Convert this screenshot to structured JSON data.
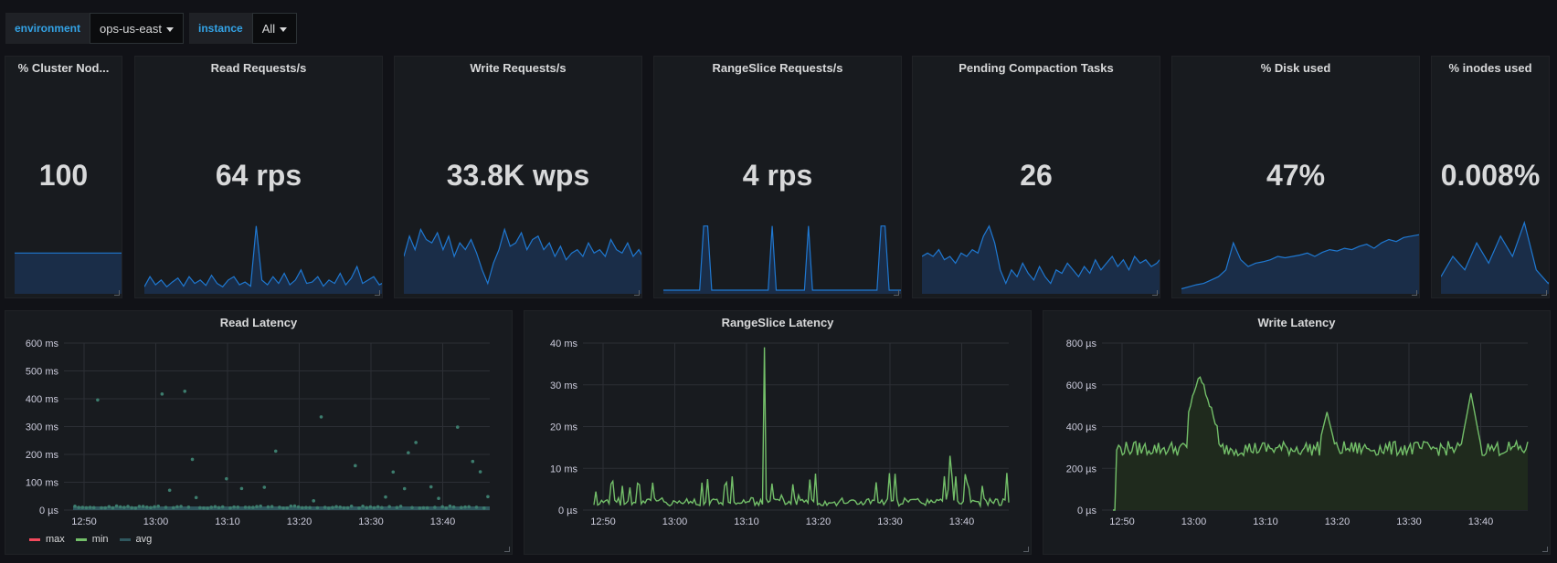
{
  "variables": [
    {
      "label": "environment",
      "value": "ops-us-east"
    },
    {
      "label": "instance",
      "value": "All"
    }
  ],
  "colors": {
    "accent": "#33a2e5",
    "spark_line": "#1f78d1",
    "spark_fill": "#1a2d48",
    "green": "#73bf69",
    "red": "#f2495c",
    "avg": "#2f575e"
  },
  "stats": [
    {
      "title": "% Cluster Nod...",
      "value": "100",
      "spark": [
        0.55,
        0.55,
        0.55,
        0.55,
        0.55,
        0.55,
        0.55,
        0.55,
        0.55,
        0.55,
        0.55
      ]
    },
    {
      "title": "Read Requests/s",
      "value": "64 rps",
      "spark": [
        0.05,
        0.2,
        0.08,
        0.15,
        0.05,
        0.12,
        0.18,
        0.06,
        0.2,
        0.1,
        0.15,
        0.07,
        0.22,
        0.1,
        0.05,
        0.15,
        0.2,
        0.08,
        0.12,
        0.06,
        0.95,
        0.15,
        0.08,
        0.2,
        0.1,
        0.25,
        0.08,
        0.15,
        0.3,
        0.1,
        0.12,
        0.2,
        0.06,
        0.15,
        0.1,
        0.25,
        0.08,
        0.18,
        0.35,
        0.1,
        0.15,
        0.2,
        0.08,
        0.12,
        0.3,
        0.1,
        0.2,
        0.15,
        0.4,
        0.1
      ]
    },
    {
      "title": "Write Requests/s",
      "value": "33.8K wps",
      "spark": [
        0.5,
        0.8,
        0.6,
        0.9,
        0.75,
        0.7,
        0.85,
        0.6,
        0.8,
        0.5,
        0.7,
        0.6,
        0.75,
        0.55,
        0.3,
        0.1,
        0.4,
        0.6,
        0.9,
        0.65,
        0.7,
        0.85,
        0.6,
        0.75,
        0.8,
        0.6,
        0.7,
        0.5,
        0.65,
        0.45,
        0.55,
        0.6,
        0.5,
        0.7,
        0.55,
        0.6,
        0.5,
        0.75,
        0.6,
        0.55,
        0.7,
        0.5,
        0.6,
        0.45,
        0.7,
        0.55,
        0.8,
        0.6,
        0.75,
        0.7
      ]
    },
    {
      "title": "RangeSlice Requests/s",
      "value": "4 rps",
      "spark": [
        0,
        0,
        0,
        0,
        0,
        0,
        0,
        0,
        0,
        0,
        0.95,
        0.95,
        0,
        0,
        0,
        0,
        0,
        0,
        0,
        0,
        0,
        0,
        0,
        0,
        0,
        0,
        0,
        0.95,
        0,
        0,
        0,
        0,
        0,
        0,
        0,
        0,
        0.95,
        0,
        0,
        0,
        0,
        0,
        0,
        0,
        0,
        0,
        0,
        0,
        0,
        0,
        0,
        0,
        0,
        0,
        0.95,
        0.95,
        0,
        0,
        0,
        0,
        0,
        0,
        0,
        0,
        0,
        0,
        0,
        0,
        0
      ]
    },
    {
      "title": "Pending Compaction Tasks",
      "value": "26",
      "spark": [
        0.5,
        0.55,
        0.5,
        0.6,
        0.45,
        0.5,
        0.4,
        0.55,
        0.5,
        0.6,
        0.55,
        0.8,
        0.95,
        0.7,
        0.3,
        0.1,
        0.3,
        0.2,
        0.4,
        0.25,
        0.15,
        0.35,
        0.2,
        0.1,
        0.3,
        0.25,
        0.4,
        0.3,
        0.2,
        0.35,
        0.25,
        0.45,
        0.3,
        0.4,
        0.5,
        0.35,
        0.45,
        0.3,
        0.5,
        0.4,
        0.45,
        0.35,
        0.4,
        0.5,
        0.45,
        0.35,
        0.5,
        0.45,
        0.55,
        0.5
      ]
    },
    {
      "title": "% Disk used",
      "value": "47%",
      "spark": [
        0.02,
        0.05,
        0.08,
        0.1,
        0.15,
        0.2,
        0.3,
        0.7,
        0.45,
        0.35,
        0.4,
        0.42,
        0.45,
        0.5,
        0.48,
        0.5,
        0.52,
        0.55,
        0.5,
        0.56,
        0.6,
        0.58,
        0.62,
        0.6,
        0.65,
        0.68,
        0.62,
        0.7,
        0.75,
        0.72,
        0.78,
        0.8,
        0.82,
        0.85,
        0.88,
        0.9,
        0.92,
        0.95
      ]
    },
    {
      "title": "% inodes used",
      "value": "0.008%",
      "spark": [
        0.2,
        0.5,
        0.3,
        0.7,
        0.4,
        0.8,
        0.5,
        1.0,
        0.3,
        0.1,
        0.35,
        0.2,
        0.5,
        0.4,
        0.7,
        0.3,
        0.5,
        0.8,
        0.4,
        0.2,
        0.5,
        0.9,
        0.6,
        0.8
      ]
    }
  ],
  "graphs": [
    {
      "title": "Read Latency",
      "yticks": [
        "600 ms",
        "500 ms",
        "400 ms",
        "300 ms",
        "200 ms",
        "100 ms",
        "0 µs"
      ],
      "xticks": [
        "12:50",
        "13:00",
        "13:10",
        "13:20",
        "13:30",
        "13:40"
      ],
      "legend": [
        {
          "name": "max",
          "color": "#f2495c"
        },
        {
          "name": "min",
          "color": "#73bf69"
        },
        {
          "name": "avg",
          "color": "#2f575e"
        }
      ]
    },
    {
      "title": "RangeSlice Latency",
      "yticks": [
        "40 ms",
        "30 ms",
        "20 ms",
        "10 ms",
        "0 µs"
      ],
      "xticks": [
        "12:50",
        "13:00",
        "13:10",
        "13:20",
        "13:30",
        "13:40"
      ],
      "legend": []
    },
    {
      "title": "Write Latency",
      "yticks": [
        "800 µs",
        "600 µs",
        "400 µs",
        "200 µs",
        "0 µs"
      ],
      "xticks": [
        "12:50",
        "13:00",
        "13:10",
        "13:20",
        "13:30",
        "13:40"
      ],
      "legend": []
    }
  ]
}
